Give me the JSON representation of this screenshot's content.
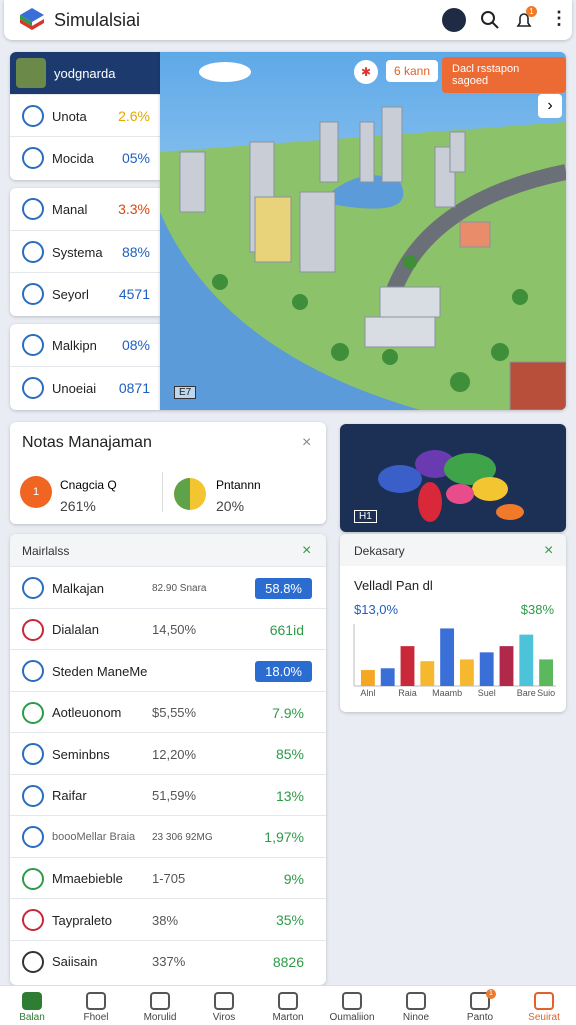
{
  "header": {
    "title": "Simulalsiai",
    "badge": "1"
  },
  "stat_cards": [
    {
      "title": "yodgnarda",
      "rows": [
        {
          "label": "Unota",
          "value": "2.6%",
          "color": "#e0a800"
        },
        {
          "label": "Mocida",
          "value": "05%",
          "color": "#1f5fbf"
        }
      ]
    },
    {
      "rows": [
        {
          "label": "Manal",
          "value": "3.3%",
          "color": "#d9480f"
        },
        {
          "label": "Systema",
          "value": "88%",
          "color": "#1f5fbf"
        },
        {
          "label": "Seyorl",
          "value": "4571",
          "color": "#1f5fbf"
        }
      ]
    },
    {
      "rows": [
        {
          "label": "Malkipn",
          "value": "08%",
          "color": "#1f5fbf"
        },
        {
          "label": "Unoeiai",
          "value": "0871",
          "color": "#1f5fbf"
        }
      ]
    }
  ],
  "map": {
    "pin": "6 kann",
    "callout": "Dacl rsstapon sagoed",
    "corner": "E7"
  },
  "notes": {
    "title": "Notas Manajaman",
    "items": [
      {
        "icon": "1",
        "label": "Cnagcia Q",
        "value": "261%"
      },
      {
        "label": "Pntannn",
        "value": "20%"
      }
    ]
  },
  "world": {
    "label": "H1"
  },
  "list": {
    "title": "Mairlalss",
    "rows": [
      {
        "label": "Malkajan",
        "middle": "82.90 Snara",
        "value": "58.8%",
        "style": "badge"
      },
      {
        "label": "Dialalan",
        "middle": "14,50%",
        "value": "661id"
      },
      {
        "label": "Steden ManeMe",
        "value": "18.0%",
        "style": "badge"
      },
      {
        "label": "Aotleuonom",
        "middle": "$5,55%",
        "value": "7.9%"
      },
      {
        "label": "Seminbns",
        "middle": "12,20%",
        "value": "85%"
      },
      {
        "label": "Raifar",
        "middle": "51,59%",
        "value": "13%"
      },
      {
        "label": "boooMellar Braia",
        "middle": "23 306 92MG",
        "value": "1,97%"
      },
      {
        "label": "Mmaebieble",
        "middle": "1-705",
        "value": "9%"
      },
      {
        "label": "Taypraleto",
        "middle": "38%",
        "value": "35%"
      },
      {
        "label": "Saiisain",
        "middle": "337%",
        "value": "8826"
      }
    ]
  },
  "chart_data": {
    "type": "bar",
    "title": "Dekasary",
    "subtitle": "Velladl Pan dl",
    "annotations": [
      "$13,0%",
      "$38%"
    ],
    "categories": [
      "Alnl",
      null,
      "Raia",
      null,
      "Maamb",
      null,
      "Suel",
      null,
      "Bare",
      "Suio"
    ],
    "values": [
      18,
      20,
      45,
      28,
      65,
      30,
      38,
      45,
      58,
      30
    ],
    "colors": [
      "#f5a623",
      "#3a6fd8",
      "#c8283a",
      "#f5b82e",
      "#3a6fd8",
      "#f5b82e",
      "#3a6fd8",
      "#b0284a",
      "#4cc3d9",
      "#5cb85c"
    ],
    "ylim": [
      0,
      70
    ]
  },
  "nav": {
    "items": [
      "Balan",
      "Fhoel",
      "Morulid",
      "Viros",
      "Marton",
      "Oumaliion",
      "Ninoe",
      "Panto",
      "Seuirat"
    ],
    "badge": "1",
    "active": 8
  }
}
